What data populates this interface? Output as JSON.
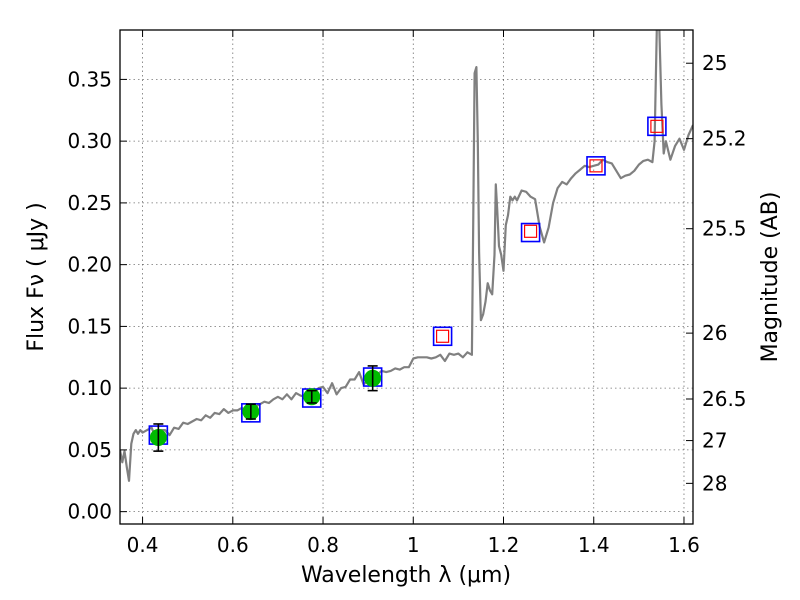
{
  "chart_data": {
    "type": "scatter",
    "xlabel": "Wavelength  λ (μm)",
    "ylabel": "Flux  Fν  ( μJy )",
    "y2label": "Magnitude (AB)",
    "xlim": [
      0.35,
      1.62
    ],
    "ylim": [
      -0.01,
      0.39
    ],
    "xticks": [
      "0.4",
      "0.6",
      "0.8",
      "1",
      "1.2",
      "1.4",
      "1.6"
    ],
    "xtick_values": [
      0.4,
      0.6,
      0.8,
      1.0,
      1.2,
      1.4,
      1.6
    ],
    "yticks": [
      "0.00",
      "0.05",
      "0.10",
      "0.15",
      "0.20",
      "0.25",
      "0.30",
      "0.35"
    ],
    "ytick_values": [
      0.0,
      0.05,
      0.1,
      0.15,
      0.2,
      0.25,
      0.3,
      0.35
    ],
    "mag_ticks": [
      "25",
      "25.2",
      "25.5",
      "26",
      "26.5",
      "27",
      "28"
    ],
    "mag_tick_values": [
      25,
      25.2,
      25.5,
      26,
      26.5,
      27,
      28
    ],
    "grid": true,
    "colors": {
      "model": "#808080",
      "observed": "#00bb00",
      "model_photometry": "#0000ff",
      "upper_limit": "#ff0000",
      "errorbar": "#000000"
    },
    "series": [
      {
        "kind": "model_spectrum",
        "x": [
          0.35,
          0.355,
          0.36,
          0.365,
          0.37,
          0.375,
          0.38,
          0.385,
          0.39,
          0.395,
          0.4,
          0.41,
          0.42,
          0.43,
          0.44,
          0.45,
          0.46,
          0.47,
          0.48,
          0.49,
          0.5,
          0.51,
          0.52,
          0.53,
          0.54,
          0.55,
          0.56,
          0.57,
          0.58,
          0.59,
          0.6,
          0.61,
          0.62,
          0.63,
          0.64,
          0.65,
          0.66,
          0.67,
          0.68,
          0.69,
          0.7,
          0.71,
          0.72,
          0.73,
          0.74,
          0.75,
          0.76,
          0.77,
          0.78,
          0.79,
          0.8,
          0.81,
          0.82,
          0.83,
          0.84,
          0.85,
          0.86,
          0.87,
          0.88,
          0.89,
          0.9,
          0.91,
          0.92,
          0.93,
          0.94,
          0.95,
          0.96,
          0.97,
          0.98,
          0.99,
          1.0,
          1.01,
          1.02,
          1.03,
          1.04,
          1.05,
          1.06,
          1.07,
          1.08,
          1.09,
          1.1,
          1.11,
          1.12,
          1.13,
          1.133,
          1.136,
          1.14,
          1.143,
          1.146,
          1.15,
          1.155,
          1.16,
          1.165,
          1.17,
          1.175,
          1.18,
          1.183,
          1.186,
          1.19,
          1.195,
          1.2,
          1.205,
          1.21,
          1.215,
          1.22,
          1.225,
          1.23,
          1.24,
          1.25,
          1.26,
          1.27,
          1.28,
          1.29,
          1.3,
          1.31,
          1.32,
          1.33,
          1.34,
          1.35,
          1.36,
          1.37,
          1.38,
          1.39,
          1.4,
          1.41,
          1.42,
          1.43,
          1.44,
          1.45,
          1.46,
          1.47,
          1.48,
          1.49,
          1.5,
          1.51,
          1.52,
          1.53,
          1.535,
          1.54,
          1.545,
          1.55,
          1.555,
          1.56,
          1.57,
          1.58,
          1.59,
          1.6,
          1.61,
          1.62
        ],
        "y": [
          0.05,
          0.04,
          0.049,
          0.036,
          0.025,
          0.055,
          0.063,
          0.066,
          0.063,
          0.066,
          0.064,
          0.066,
          0.068,
          0.059,
          0.066,
          0.066,
          0.062,
          0.068,
          0.067,
          0.072,
          0.071,
          0.073,
          0.075,
          0.074,
          0.078,
          0.076,
          0.08,
          0.079,
          0.083,
          0.08,
          0.082,
          0.082,
          0.084,
          0.081,
          0.085,
          0.085,
          0.087,
          0.089,
          0.088,
          0.091,
          0.093,
          0.091,
          0.095,
          0.091,
          0.096,
          0.094,
          0.093,
          0.091,
          0.095,
          0.1,
          0.101,
          0.096,
          0.104,
          0.095,
          0.1,
          0.101,
          0.107,
          0.107,
          0.113,
          0.103,
          0.106,
          0.112,
          0.111,
          0.114,
          0.113,
          0.114,
          0.116,
          0.115,
          0.117,
          0.117,
          0.124,
          0.125,
          0.125,
          0.125,
          0.124,
          0.125,
          0.127,
          0.122,
          0.128,
          0.127,
          0.128,
          0.125,
          0.129,
          0.127,
          0.24,
          0.355,
          0.36,
          0.3,
          0.21,
          0.155,
          0.16,
          0.17,
          0.185,
          0.179,
          0.176,
          0.208,
          0.265,
          0.245,
          0.215,
          0.208,
          0.195,
          0.232,
          0.24,
          0.255,
          0.252,
          0.255,
          0.252,
          0.26,
          0.259,
          0.255,
          0.253,
          0.231,
          0.218,
          0.23,
          0.25,
          0.262,
          0.267,
          0.265,
          0.27,
          0.274,
          0.277,
          0.28,
          0.279,
          0.28,
          0.281,
          0.285,
          0.283,
          0.282,
          0.276,
          0.27,
          0.272,
          0.273,
          0.276,
          0.281,
          0.284,
          0.285,
          0.283,
          0.3,
          0.395,
          0.395,
          0.33,
          0.29,
          0.3,
          0.285,
          0.296,
          0.302,
          0.293,
          0.305,
          0.313
        ]
      },
      {
        "kind": "model_photometry",
        "marker": "open-square",
        "x": [
          0.435,
          0.64,
          0.775,
          0.91,
          1.065,
          1.26,
          1.405,
          1.54
        ],
        "y": [
          0.062,
          0.08,
          0.092,
          0.109,
          0.142,
          0.226,
          0.28,
          0.312
        ]
      },
      {
        "kind": "observed",
        "marker": "filled-circle",
        "x": [
          0.435,
          0.64,
          0.775,
          0.91
        ],
        "y": [
          0.06,
          0.081,
          0.093,
          0.108
        ],
        "yerr": [
          0.011,
          0.006,
          0.005,
          0.01
        ]
      },
      {
        "kind": "upper_limit",
        "marker": "open-square",
        "x": [
          1.065,
          1.26,
          1.405,
          1.54
        ],
        "y": [
          0.142,
          0.227,
          0.28,
          0.312
        ]
      }
    ]
  }
}
